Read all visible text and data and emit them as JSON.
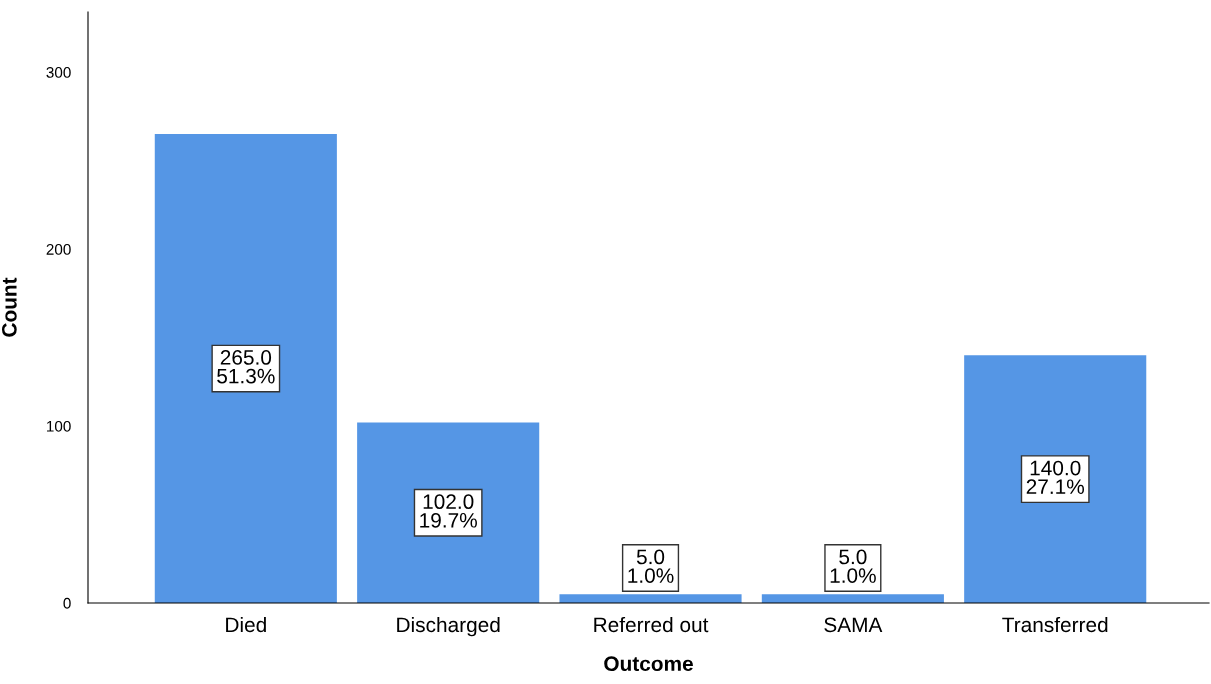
{
  "chart_data": {
    "type": "bar",
    "xlabel": "Outcome",
    "ylabel": "Count",
    "categories": [
      "Died",
      "Discharged",
      "Referred out",
      "SAMA",
      "Transferred"
    ],
    "values": [
      265,
      102,
      5,
      5,
      140
    ],
    "value_labels": [
      "265.0\n51.3%",
      "102.0\n19.7%",
      "5.0\n1.0%",
      "5.0\n1.0%",
      "140.0\n27.1%"
    ],
    "color": "#5596e5",
    "ylim": [
      0,
      334
    ],
    "yticks": [
      0,
      100,
      200,
      300
    ],
    "grid": false,
    "legend": false
  }
}
